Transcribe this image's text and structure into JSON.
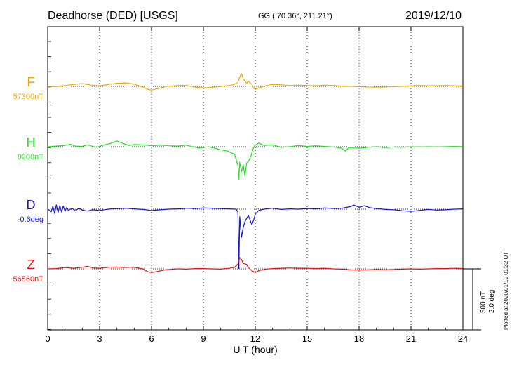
{
  "header": {
    "station": "Deadhorse (DED)  [USGS]",
    "coords": "GG ( 70.36°, 211.21°)",
    "date": "2019/12/10"
  },
  "footer": {
    "plotted_at": "Plotted at 2020/01/10 01:32 UT"
  },
  "chart_data": {
    "type": "line",
    "xlabel": "U T (hour)",
    "xlim": [
      0,
      24
    ],
    "xticks": [
      0,
      3,
      6,
      9,
      12,
      15,
      18,
      21,
      24
    ],
    "grid": true,
    "scale_bar": {
      "nt": "500 nT",
      "deg": "2.0 deg"
    },
    "series": [
      {
        "name": "F",
        "baseline_label": "57300nT",
        "color": "#f0a800",
        "points": [
          [
            0,
            0
          ],
          [
            0.5,
            -5
          ],
          [
            1,
            15
          ],
          [
            1.5,
            30
          ],
          [
            2,
            45
          ],
          [
            2.5,
            20
          ],
          [
            3,
            10
          ],
          [
            3.5,
            30
          ],
          [
            4,
            50
          ],
          [
            4.5,
            55
          ],
          [
            5,
            35
          ],
          [
            5.5,
            -10
          ],
          [
            5.8,
            -50
          ],
          [
            6,
            -60
          ],
          [
            6.3,
            -40
          ],
          [
            6.8,
            -5
          ],
          [
            7.5,
            15
          ],
          [
            8,
            15
          ],
          [
            8.5,
            -10
          ],
          [
            9,
            -25
          ],
          [
            9.5,
            -15
          ],
          [
            10,
            0
          ],
          [
            10.5,
            15
          ],
          [
            10.8,
            35
          ],
          [
            11,
            65
          ],
          [
            11.1,
            150
          ],
          [
            11.2,
            200
          ],
          [
            11.3,
            120
          ],
          [
            11.5,
            50
          ],
          [
            11.6,
            85
          ],
          [
            11.8,
            30
          ],
          [
            11.9,
            -20
          ],
          [
            12,
            -50
          ],
          [
            12.2,
            -25
          ],
          [
            12.6,
            10
          ],
          [
            13,
            30
          ],
          [
            13.5,
            25
          ],
          [
            14,
            15
          ],
          [
            14.5,
            20
          ],
          [
            15,
            15
          ],
          [
            15.5,
            10
          ],
          [
            16,
            20
          ],
          [
            16.5,
            15
          ],
          [
            17,
            5
          ],
          [
            17.5,
            0
          ],
          [
            18,
            -5
          ],
          [
            18.5,
            -10
          ],
          [
            19,
            -15
          ],
          [
            19.5,
            -10
          ],
          [
            20,
            -5
          ],
          [
            20.5,
            0
          ],
          [
            21,
            10
          ],
          [
            21.5,
            15
          ],
          [
            22,
            10
          ],
          [
            22.5,
            10
          ],
          [
            23,
            15
          ],
          [
            23.5,
            10
          ],
          [
            24,
            5
          ]
        ]
      },
      {
        "name": "H",
        "baseline_label": "9200nT",
        "color": "#20e020",
        "points": [
          [
            0,
            0
          ],
          [
            0.5,
            10
          ],
          [
            1,
            20
          ],
          [
            1.3,
            40
          ],
          [
            1.6,
            10
          ],
          [
            2,
            5
          ],
          [
            2.3,
            30
          ],
          [
            2.8,
            -10
          ],
          [
            3.2,
            25
          ],
          [
            3.6,
            50
          ],
          [
            4,
            90
          ],
          [
            4.3,
            60
          ],
          [
            4.7,
            20
          ],
          [
            5,
            35
          ],
          [
            5.5,
            30
          ],
          [
            6,
            15
          ],
          [
            6.5,
            25
          ],
          [
            7,
            15
          ],
          [
            7.5,
            10
          ],
          [
            8,
            25
          ],
          [
            8.3,
            5
          ],
          [
            8.8,
            -20
          ],
          [
            9.3,
            0
          ],
          [
            9.6,
            -20
          ],
          [
            10,
            -50
          ],
          [
            10.4,
            -70
          ],
          [
            10.8,
            -120
          ],
          [
            11,
            -300
          ],
          [
            11.05,
            -520
          ],
          [
            11.1,
            -250
          ],
          [
            11.2,
            -400
          ],
          [
            11.3,
            -280
          ],
          [
            11.4,
            -470
          ],
          [
            11.5,
            -260
          ],
          [
            11.6,
            -240
          ],
          [
            11.75,
            -150
          ],
          [
            11.9,
            -10
          ],
          [
            12,
            25
          ],
          [
            12.2,
            60
          ],
          [
            12.5,
            20
          ],
          [
            13,
            30
          ],
          [
            13.5,
            -10
          ],
          [
            14,
            0
          ],
          [
            14.5,
            20
          ],
          [
            15,
            5
          ],
          [
            15.5,
            15
          ],
          [
            16,
            5
          ],
          [
            16.5,
            -5
          ],
          [
            17,
            -20
          ],
          [
            17.2,
            -70
          ],
          [
            17.4,
            -15
          ],
          [
            18,
            -25
          ],
          [
            18.5,
            -10
          ],
          [
            19,
            0
          ],
          [
            19.5,
            -15
          ],
          [
            20,
            -5
          ],
          [
            20.5,
            -10
          ],
          [
            21,
            0
          ],
          [
            21.5,
            -5
          ],
          [
            22,
            0
          ],
          [
            22.5,
            -5
          ],
          [
            23,
            0
          ],
          [
            23.5,
            5
          ],
          [
            24,
            0
          ]
        ]
      },
      {
        "name": "D",
        "baseline_label": "-0.6deg",
        "color": "#1414d8",
        "points": [
          [
            0,
            5
          ],
          [
            0.2,
            -40
          ],
          [
            0.3,
            50
          ],
          [
            0.4,
            -70
          ],
          [
            0.5,
            70
          ],
          [
            0.6,
            -55
          ],
          [
            0.7,
            60
          ],
          [
            0.8,
            -45
          ],
          [
            0.9,
            50
          ],
          [
            1,
            -35
          ],
          [
            1.1,
            30
          ],
          [
            1.2,
            -20
          ],
          [
            1.4,
            15
          ],
          [
            1.6,
            -25
          ],
          [
            1.8,
            15
          ],
          [
            2,
            -15
          ],
          [
            2.3,
            -30
          ],
          [
            2.6,
            -10
          ],
          [
            3,
            -20
          ],
          [
            3.5,
            0
          ],
          [
            4,
            10
          ],
          [
            4.5,
            15
          ],
          [
            5,
            5
          ],
          [
            5.5,
            -5
          ],
          [
            6,
            -20
          ],
          [
            6.5,
            -10
          ],
          [
            7,
            0
          ],
          [
            7.5,
            5
          ],
          [
            8,
            15
          ],
          [
            8.5,
            10
          ],
          [
            9,
            20
          ],
          [
            9.5,
            15
          ],
          [
            10,
            10
          ],
          [
            10.5,
            5
          ],
          [
            10.9,
            0
          ],
          [
            11,
            -50
          ],
          [
            11.05,
            -950
          ],
          [
            11.1,
            -120
          ],
          [
            11.2,
            -450
          ],
          [
            11.3,
            -300
          ],
          [
            11.4,
            -200
          ],
          [
            11.5,
            -150
          ],
          [
            11.6,
            -100
          ],
          [
            11.8,
            -250
          ],
          [
            11.9,
            -180
          ],
          [
            12,
            -80
          ],
          [
            12.2,
            -20
          ],
          [
            12.5,
            0
          ],
          [
            13,
            15
          ],
          [
            13.5,
            -5
          ],
          [
            14,
            5
          ],
          [
            14.5,
            0
          ],
          [
            15,
            10
          ],
          [
            15.5,
            5
          ],
          [
            16,
            20
          ],
          [
            16.5,
            10
          ],
          [
            17,
            15
          ],
          [
            17.5,
            40
          ],
          [
            17.7,
            65
          ],
          [
            18,
            30
          ],
          [
            18.3,
            55
          ],
          [
            18.6,
            25
          ],
          [
            19,
            10
          ],
          [
            19.5,
            -5
          ],
          [
            20,
            -10
          ],
          [
            20.5,
            -25
          ],
          [
            21,
            -35
          ],
          [
            21.5,
            -20
          ],
          [
            22,
            -5
          ],
          [
            22.5,
            -15
          ],
          [
            23,
            -10
          ],
          [
            23.5,
            0
          ],
          [
            24,
            5
          ]
        ]
      },
      {
        "name": "Z",
        "baseline_label": "56560nT",
        "color": "#e01414",
        "points": [
          [
            0,
            0
          ],
          [
            0.5,
            5
          ],
          [
            1,
            20
          ],
          [
            1.5,
            10
          ],
          [
            2,
            25
          ],
          [
            2.3,
            40
          ],
          [
            2.6,
            15
          ],
          [
            3,
            10
          ],
          [
            3.5,
            25
          ],
          [
            4,
            30
          ],
          [
            4.5,
            20
          ],
          [
            5,
            25
          ],
          [
            5.5,
            0
          ],
          [
            5.8,
            -50
          ],
          [
            6,
            -60
          ],
          [
            6.3,
            -45
          ],
          [
            6.8,
            -15
          ],
          [
            7.5,
            0
          ],
          [
            8,
            -5
          ],
          [
            8.5,
            5
          ],
          [
            9,
            5
          ],
          [
            9.5,
            0
          ],
          [
            10,
            -5
          ],
          [
            10.5,
            10
          ],
          [
            10.8,
            25
          ],
          [
            11,
            80
          ],
          [
            11.1,
            180
          ],
          [
            11.2,
            150
          ],
          [
            11.3,
            90
          ],
          [
            11.5,
            70
          ],
          [
            11.6,
            20
          ],
          [
            11.8,
            -30
          ],
          [
            12,
            -60
          ],
          [
            12.2,
            -30
          ],
          [
            12.6,
            -5
          ],
          [
            13,
            5
          ],
          [
            13.5,
            10
          ],
          [
            14,
            15
          ],
          [
            14.5,
            10
          ],
          [
            15,
            10
          ],
          [
            15.5,
            5
          ],
          [
            16,
            10
          ],
          [
            16.5,
            0
          ],
          [
            17,
            -5
          ],
          [
            17.5,
            -15
          ],
          [
            18,
            -20
          ],
          [
            18.5,
            -15
          ],
          [
            19,
            -10
          ],
          [
            19.5,
            -15
          ],
          [
            20,
            -10
          ],
          [
            20.5,
            -5
          ],
          [
            21,
            0
          ],
          [
            21.5,
            -5
          ],
          [
            22,
            0
          ],
          [
            22.5,
            5
          ],
          [
            23,
            5
          ],
          [
            23.5,
            10
          ],
          [
            24,
            5
          ]
        ]
      }
    ]
  }
}
